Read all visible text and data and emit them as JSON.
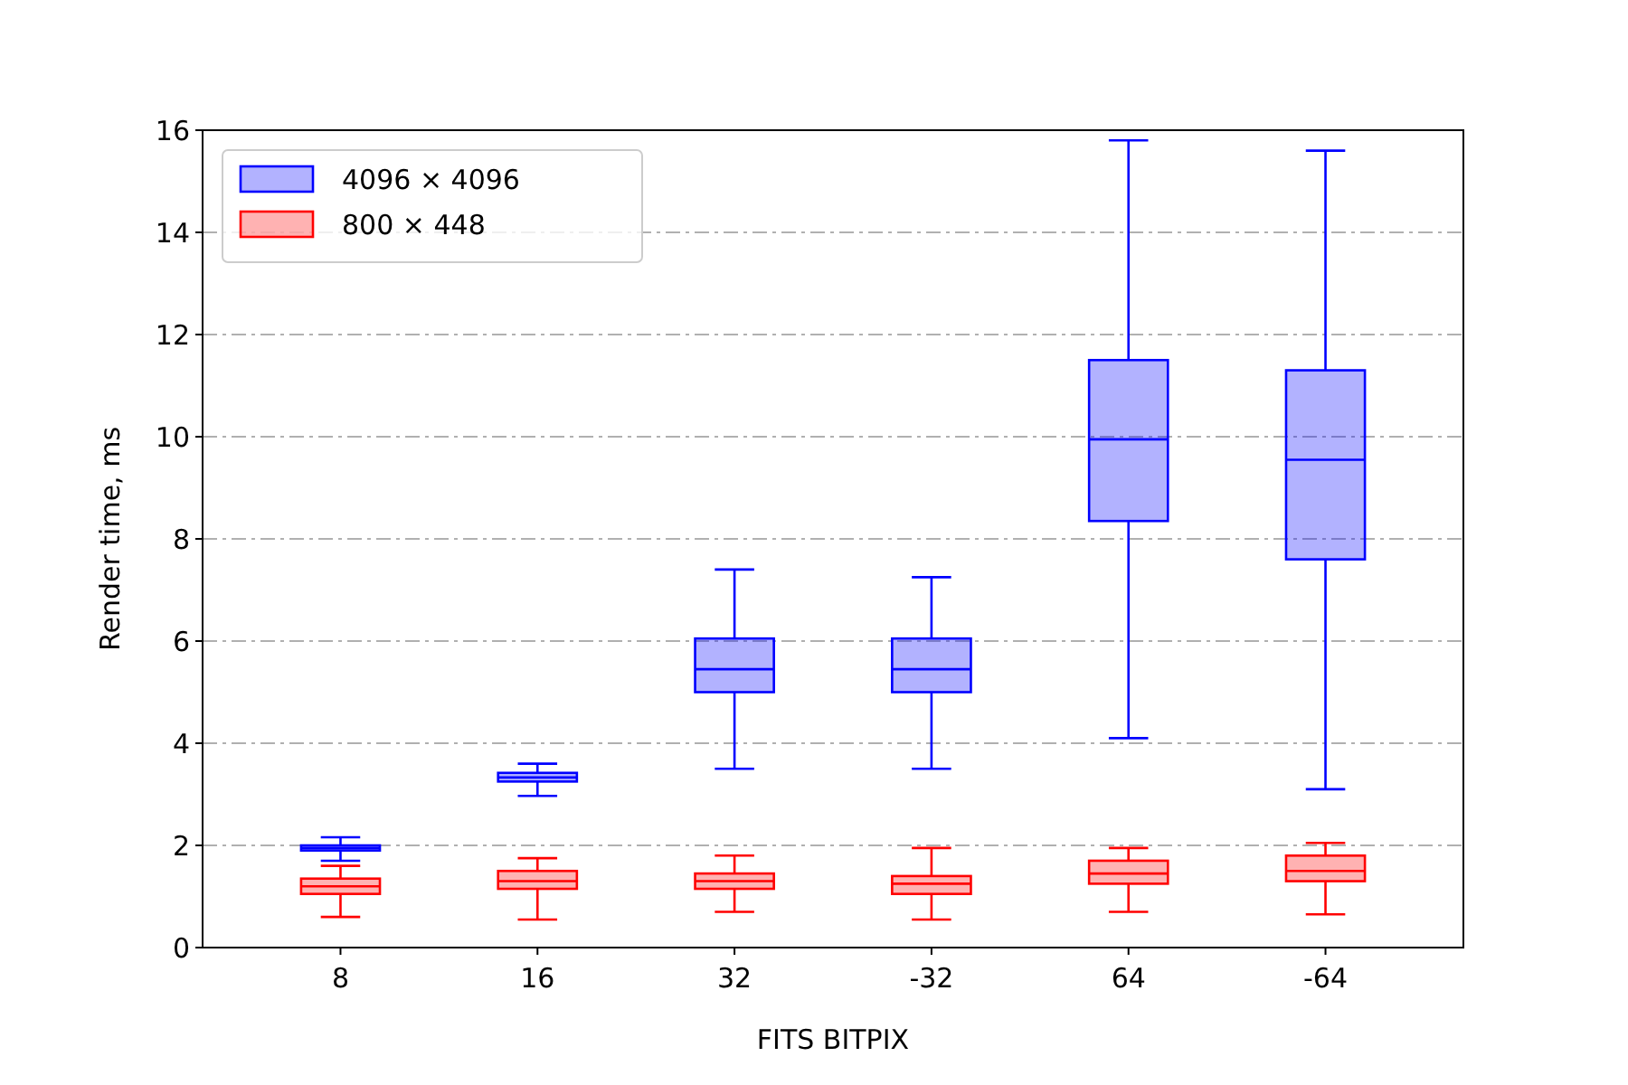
{
  "chart_data": {
    "type": "box",
    "xlabel": "FITS BITPIX",
    "ylabel": "Render time, ms",
    "categories": [
      "8",
      "16",
      "32",
      "-32",
      "64",
      "-64"
    ],
    "ylim": [
      0,
      16
    ],
    "yticks": [
      0,
      2,
      4,
      6,
      8,
      10,
      12,
      14,
      16
    ],
    "grid": "y",
    "legend": "top left",
    "series": [
      {
        "name": "4096 × 4096",
        "color": "#0000ff",
        "boxes": [
          {
            "low": 1.7,
            "q1": 1.9,
            "median": 1.95,
            "q3": 2.0,
            "high": 2.16
          },
          {
            "low": 2.97,
            "q1": 3.25,
            "median": 3.33,
            "q3": 3.42,
            "high": 3.6
          },
          {
            "low": 3.5,
            "q1": 5.0,
            "median": 5.45,
            "q3": 6.05,
            "high": 7.4
          },
          {
            "low": 3.5,
            "q1": 5.0,
            "median": 5.45,
            "q3": 6.05,
            "high": 7.25
          },
          {
            "low": 4.1,
            "q1": 8.35,
            "median": 9.95,
            "q3": 11.5,
            "high": 15.8
          },
          {
            "low": 3.1,
            "q1": 7.6,
            "median": 9.55,
            "q3": 11.3,
            "high": 15.6
          }
        ]
      },
      {
        "name": "800 × 448",
        "color": "#ff0000",
        "boxes": [
          {
            "low": 0.6,
            "q1": 1.05,
            "median": 1.2,
            "q3": 1.35,
            "high": 1.6
          },
          {
            "low": 0.55,
            "q1": 1.15,
            "median": 1.3,
            "q3": 1.5,
            "high": 1.75
          },
          {
            "low": 0.7,
            "q1": 1.15,
            "median": 1.3,
            "q3": 1.45,
            "high": 1.8
          },
          {
            "low": 0.55,
            "q1": 1.05,
            "median": 1.25,
            "q3": 1.4,
            "high": 1.95
          },
          {
            "low": 0.7,
            "q1": 1.25,
            "median": 1.45,
            "q3": 1.7,
            "high": 1.95
          },
          {
            "low": 0.65,
            "q1": 1.3,
            "median": 1.5,
            "q3": 1.8,
            "high": 2.05
          }
        ]
      }
    ]
  }
}
